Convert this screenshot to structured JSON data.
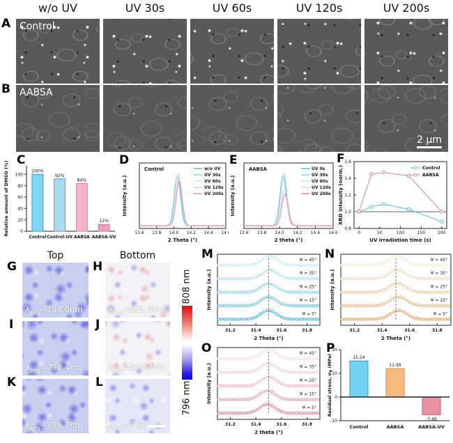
{
  "columns": [
    "w/o UV",
    "UV 30s",
    "UV 60s",
    "UV 120s",
    "UV 200s"
  ],
  "letters": {
    "a": "A",
    "b": "B",
    "c": "C",
    "d": "D",
    "e": "E",
    "f": "F",
    "g": "G",
    "h": "H",
    "i": "I",
    "j": "J",
    "k": "K",
    "l": "L",
    "m": "M",
    "n": "N",
    "o": "O",
    "p": "P"
  },
  "panel_a": {
    "inset": "Control"
  },
  "panel_b": {
    "inset": "AABSA",
    "scalebar": "2 μm"
  },
  "maps": {
    "top_header": "Top",
    "bottom_header": "Bottom",
    "colorbar": {
      "top": "808 nm",
      "bottom": "796 nm"
    },
    "g": {
      "lambda": "λ",
      "sub": "avg",
      "value": "=798.0nm"
    },
    "h": {
      "lambda": "λ",
      "sub": "avg",
      "value": "=801.9nm"
    },
    "i": {
      "lambda": "λ",
      "sub": "avg",
      "value": "=798.4nm"
    },
    "j": {
      "lambda": "λ",
      "sub": "avg",
      "value": "=801.7nm"
    },
    "k": {
      "lambda": "λ",
      "sub": "avg",
      "value": "=798.7nm"
    },
    "l": {
      "lambda": "λ",
      "sub": "avg",
      "value": "=799.9nm"
    }
  },
  "chart_data": [
    {
      "id": "C",
      "type": "bar",
      "ylabel": "Relative amount of DMSO (%)",
      "categories": [
        "Control",
        "Control-UV",
        "AABSA",
        "AABSA-UV"
      ],
      "values": [
        100,
        92,
        84,
        12
      ],
      "value_labels": [
        "100%",
        "92%",
        "84%",
        "12%"
      ],
      "yticks": [
        0,
        20,
        40,
        60,
        80,
        100
      ],
      "ytick_labels": [
        "0",
        "20",
        "40",
        "60",
        "80",
        "100"
      ],
      "ylim": [
        0,
        115
      ],
      "colors": [
        "#7fd6f4",
        "#a9daf2",
        "#f4b6c4",
        "#f19dbb"
      ],
      "strokes": [
        "#2f9ec9",
        "#5a9bc9",
        "#d4849c",
        "#cf6e97"
      ]
    },
    {
      "id": "D",
      "type": "xrd",
      "inset": "Control",
      "xlabel": "2 Theta (°)",
      "ylabel": "Intensity (a.u.)",
      "xlim": [
        13.6,
        14.6
      ],
      "xticks": [
        13.6,
        13.8,
        14.0,
        14.2,
        14.4,
        14.6
      ],
      "xtick_labels": [
        "13.6",
        "13.8",
        "14.0",
        "14.2",
        "14.4",
        "14.6"
      ],
      "series": [
        {
          "name": "w/o UV",
          "color": "#55c3dc",
          "peak_center": 14.04,
          "peak_height": 0.94,
          "peak_width": 0.05
        },
        {
          "name": "UV 30s",
          "color": "#8fdcec",
          "peak_center": 14.05,
          "peak_height": 0.98,
          "peak_width": 0.05
        },
        {
          "name": "UV 60s",
          "color": "#c6edf5",
          "peak_center": 14.05,
          "peak_height": 1.0,
          "peak_width": 0.05
        },
        {
          "name": "UV 120s",
          "color": "#f6cbd3",
          "peak_center": 14.06,
          "peak_height": 0.9,
          "peak_width": 0.05
        },
        {
          "name": "UV 200s",
          "color": "#e698a7",
          "peak_center": 14.06,
          "peak_height": 0.84,
          "peak_width": 0.05
        }
      ]
    },
    {
      "id": "E",
      "type": "xrd",
      "inset": "AABSA",
      "xlabel": "2 theta (°)",
      "ylabel": "Intensity (a.u.)",
      "xlim": [
        13.6,
        14.6
      ],
      "xticks": [
        13.6,
        13.8,
        14.0,
        14.2,
        14.4,
        14.6
      ],
      "xtick_labels": [
        "13.6",
        "13.8",
        "14.0",
        "14.2",
        "14.4",
        "14.6"
      ],
      "series": [
        {
          "name": "UV 0s",
          "color": "#55c3dc",
          "peak_center": 14.04,
          "peak_height": 0.95,
          "peak_width": 0.05
        },
        {
          "name": "UV 30s",
          "color": "#8fdcec",
          "peak_center": 14.05,
          "peak_height": 0.98,
          "peak_width": 0.05
        },
        {
          "name": "UV 60s",
          "color": "#c6edf5",
          "peak_center": 14.05,
          "peak_height": 1.0,
          "peak_width": 0.05
        },
        {
          "name": "UV 120s",
          "color": "#f6cbd3",
          "peak_center": 14.05,
          "peak_height": 0.66,
          "peak_width": 0.05
        },
        {
          "name": "UV 200s",
          "color": "#e698a7",
          "peak_center": 14.06,
          "peak_height": 0.6,
          "peak_width": 0.05
        }
      ]
    },
    {
      "id": "F",
      "type": "line",
      "xlabel": "UV irradiation time (s)",
      "ylabel": "XRD intensity (norm.)",
      "x": [
        0,
        30,
        60,
        120,
        200
      ],
      "xticks": [
        0,
        50,
        100,
        150,
        200
      ],
      "xtick_labels": [
        "0",
        "50",
        "100",
        "150",
        "200"
      ],
      "yticks": [
        0.8,
        1.0,
        1.2,
        1.4,
        1.6
      ],
      "ytick_labels": [
        "0.8",
        "1.0",
        "1.2",
        "1.4",
        "1.6"
      ],
      "xlim": [
        -12,
        212
      ],
      "ylim": [
        0.8,
        1.6
      ],
      "refline": 1.0,
      "series": [
        {
          "name": "Control",
          "color": "#5fc6de",
          "values": [
            1.0,
            1.06,
            1.09,
            1.03,
            0.88
          ]
        },
        {
          "name": "AABSA",
          "color": "#d88e99",
          "values": [
            1.0,
            1.45,
            1.47,
            1.43,
            1.0
          ]
        }
      ]
    },
    {
      "id": "M",
      "type": "stacked",
      "xlabel": "2 Theta (°)",
      "ylabel": "Intensity (a.u.)",
      "xlim": [
        31.1,
        31.9
      ],
      "xticks": [
        31.2,
        31.4,
        31.6,
        31.8
      ],
      "xtick_labels": [
        "31.2",
        "31.4",
        "31.6",
        "31.8"
      ],
      "dashed_x": 31.5,
      "peak_width": 0.085,
      "series": [
        {
          "label": "Ψ = 45°",
          "color": "#c8eaf4",
          "center": 31.51
        },
        {
          "label": "Ψ = 35°",
          "color": "#abdff0",
          "center": 31.51
        },
        {
          "label": "Ψ = 25°",
          "color": "#8bd3e8",
          "center": 31.5
        },
        {
          "label": "Ψ = 15°",
          "color": "#66c4de",
          "center": 31.5
        },
        {
          "label": "Ψ = 5°",
          "color": "#46b5d5",
          "center": 31.5
        }
      ]
    },
    {
      "id": "N",
      "type": "stacked",
      "xlabel": "2 Theta (°)",
      "ylabel": "Intensity (a.u.)",
      "xlim": [
        31.1,
        31.9
      ],
      "xticks": [
        31.2,
        31.4,
        31.6,
        31.8
      ],
      "xtick_labels": [
        "31.2",
        "31.4",
        "31.6",
        "31.8"
      ],
      "dashed_x": 31.5,
      "peak_width": 0.085,
      "series": [
        {
          "label": "Ψ = 45°",
          "color": "#f8e8d2",
          "center": 31.51
        },
        {
          "label": "Ψ = 35°",
          "color": "#f3d8b6",
          "center": 31.51
        },
        {
          "label": "Ψ = 25°",
          "color": "#edc795",
          "center": 31.51
        },
        {
          "label": "Ψ = 15°",
          "color": "#e6b274",
          "center": 31.52
        },
        {
          "label": "Ψ = 5°",
          "color": "#dd9e53",
          "center": 31.52
        }
      ]
    },
    {
      "id": "O",
      "type": "stacked",
      "xlabel": "2 theta (°)",
      "ylabel": "Intensity (a.u.)",
      "xlim": [
        31.1,
        31.9
      ],
      "xticks": [
        31.2,
        31.4,
        31.6,
        31.8
      ],
      "xtick_labels": [
        "31.2",
        "31.4",
        "31.6",
        "31.8"
      ],
      "dashed_x": 31.5,
      "peak_width": 0.085,
      "series": [
        {
          "label": "Ψ = 45°",
          "color": "#f8dee1",
          "center": 31.5
        },
        {
          "label": "Ψ = 35°",
          "color": "#f3cdd2",
          "center": 31.5
        },
        {
          "label": "Ψ = 25°",
          "color": "#edb7bf",
          "center": 31.5
        },
        {
          "label": "Ψ = 15°",
          "color": "#e49da9",
          "center": 31.49
        },
        {
          "label": "Ψ = 5°",
          "color": "#da8392",
          "center": 31.49
        }
      ]
    },
    {
      "id": "P",
      "type": "bar-signed",
      "ylabel": "Residual stress, σR (MPa)",
      "ylabel_parts": [
        "Residual stress, σ",
        "R",
        " (MPa)"
      ],
      "categories": [
        "Control",
        "AABSA",
        "AABSA-UV"
      ],
      "values": [
        15.24,
        11.99,
        -7.46
      ],
      "value_labels": [
        "15.24",
        "11.99",
        "-7.46"
      ],
      "yticks": [
        -10,
        0,
        10,
        20
      ],
      "ytick_labels": [
        "-10",
        "0",
        "10",
        "20"
      ],
      "ylim": [
        -10,
        20
      ],
      "colors": [
        "#74d2f4",
        "#f6bb7f",
        "#e9929f"
      ],
      "strokes": [
        "#2da0cf",
        "#dd8f3f",
        "#cc5f72"
      ]
    }
  ]
}
